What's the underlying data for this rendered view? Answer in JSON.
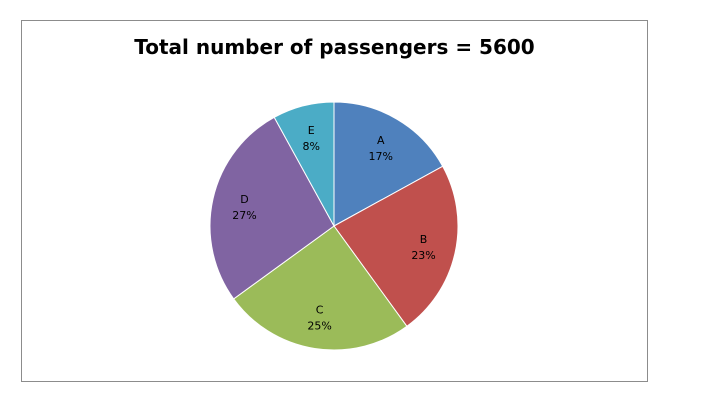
{
  "chart_data": {
    "type": "pie",
    "title": "Total number of passengers = 5600",
    "categories": [
      "A",
      "B",
      "C",
      "D",
      "E"
    ],
    "values": [
      17,
      23,
      25,
      27,
      8
    ],
    "value_suffix": "%",
    "colors": [
      "#4f81bd",
      "#c0504d",
      "#9bbb59",
      "#8064a2",
      "#4bacc6"
    ],
    "legend": "none",
    "data_labels": "inside"
  }
}
